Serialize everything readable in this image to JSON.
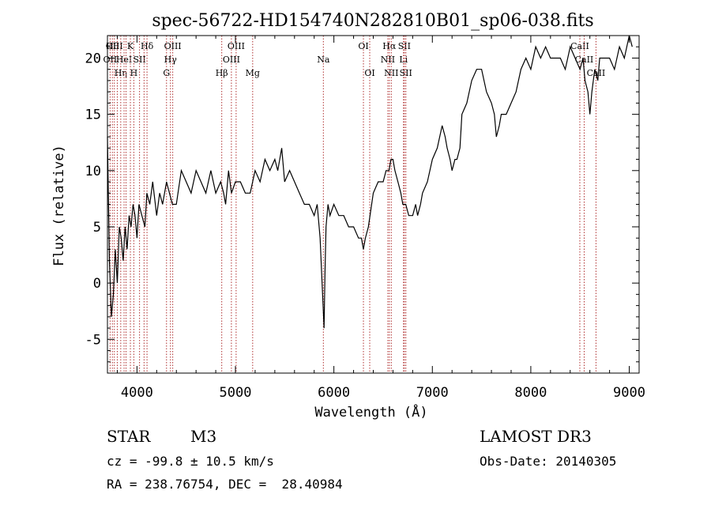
{
  "chart_data": {
    "type": "line",
    "title": "spec-56722-HD154740N282810B01_sp06-038.fits",
    "xlabel": "Wavelength (Å)",
    "ylabel": "Flux (relative)",
    "xlim": [
      3700,
      9100
    ],
    "ylim": [
      -8,
      22
    ],
    "xticks": [
      4000,
      5000,
      6000,
      7000,
      8000,
      9000
    ],
    "yticks": [
      -5,
      0,
      5,
      10,
      15,
      20
    ],
    "grid": false,
    "line_color": "#000000",
    "marker_color": "#b03030",
    "series": [
      {
        "values_x": [
          3700,
          3720,
          3740,
          3760,
          3780,
          3800,
          3820,
          3840,
          3860,
          3880,
          3900,
          3920,
          3940,
          3960,
          3980,
          4000,
          4020,
          4050,
          4080,
          4100,
          4130,
          4160,
          4200,
          4230,
          4260,
          4300,
          4330,
          4360,
          4400,
          4450,
          4500,
          4550,
          4600,
          4650,
          4700,
          4750,
          4800,
          4850,
          4880,
          4900,
          4930,
          4960,
          5000,
          5050,
          5100,
          5150,
          5200,
          5250,
          5300,
          5350,
          5400,
          5430,
          5450,
          5470,
          5500,
          5550,
          5600,
          5650,
          5700,
          5750,
          5800,
          5830,
          5860,
          5880,
          5900,
          5910,
          5920,
          5940,
          5960,
          6000,
          6050,
          6100,
          6150,
          6200,
          6250,
          6280,
          6300,
          6320,
          6350,
          6400,
          6450,
          6500,
          6530,
          6560,
          6580,
          6600,
          6620,
          6650,
          6680,
          6700,
          6730,
          6760,
          6800,
          6830,
          6850,
          6880,
          6900,
          6950,
          7000,
          7050,
          7100,
          7130,
          7150,
          7180,
          7200,
          7230,
          7250,
          7280,
          7300,
          7350,
          7400,
          7450,
          7500,
          7550,
          7600,
          7630,
          7650,
          7680,
          7700,
          7750,
          7800,
          7850,
          7900,
          7950,
          8000,
          8050,
          8100,
          8150,
          8200,
          8250,
          8300,
          8350,
          8400,
          8450,
          8500,
          8530,
          8550,
          8580,
          8600,
          8620,
          8650,
          8680,
          8700,
          8750,
          8800,
          8850,
          8900,
          8950,
          9000,
          9030
        ],
        "values_y": [
          13,
          2,
          -3,
          -1,
          3,
          0,
          5,
          4,
          2,
          5,
          3,
          6,
          5,
          7,
          6,
          4,
          7,
          6,
          5,
          8,
          7,
          9,
          6,
          8,
          7,
          9,
          8,
          7,
          7,
          10,
          9,
          8,
          10,
          9,
          8,
          10,
          8,
          9,
          8,
          7,
          10,
          8,
          9,
          9,
          8,
          8,
          10,
          9,
          11,
          10,
          11,
          10,
          11,
          12,
          9,
          10,
          9,
          8,
          7,
          7,
          6,
          7,
          4,
          0,
          -4,
          1,
          5,
          7,
          6,
          7,
          6,
          6,
          5,
          5,
          4,
          4,
          3,
          4,
          5,
          8,
          9,
          9,
          10,
          10,
          11,
          11,
          10,
          9,
          8,
          7,
          7,
          6,
          6,
          7,
          6,
          7,
          8,
          9,
          11,
          12,
          14,
          13,
          12,
          11,
          10,
          11,
          11,
          12,
          15,
          16,
          18,
          19,
          19,
          17,
          16,
          15,
          13,
          14,
          15,
          15,
          16,
          17,
          19,
          20,
          19,
          21,
          20,
          21,
          20,
          20,
          20,
          19,
          21,
          20,
          19,
          20,
          18,
          17,
          15,
          17,
          19,
          18,
          20,
          20,
          20,
          19,
          21,
          20,
          22,
          21
        ]
      }
    ],
    "lines": [
      {
        "x": 3727,
        "label": "OII",
        "row": 1
      },
      {
        "x": 3750,
        "label": "Hθ",
        "row": 0
      },
      {
        "x": 3770,
        "label": "OIII",
        "row": 0
      },
      {
        "x": 3800,
        "label": "",
        "row": 0
      },
      {
        "x": 3835,
        "label": "Hη",
        "row": 2
      },
      {
        "x": 3869,
        "label": "HeI",
        "row": 1
      },
      {
        "x": 3889,
        "label": "",
        "row": 0
      },
      {
        "x": 3933,
        "label": "K",
        "row": 0
      },
      {
        "x": 3968,
        "label": "H",
        "row": 2
      },
      {
        "x": 4026,
        "label": "SII",
        "row": 1
      },
      {
        "x": 4072,
        "label": "",
        "row": 0
      },
      {
        "x": 4102,
        "label": "Hδ",
        "row": 0
      },
      {
        "x": 4300,
        "label": "G",
        "row": 2
      },
      {
        "x": 4340,
        "label": "Hγ",
        "row": 1
      },
      {
        "x": 4363,
        "label": "OIII",
        "row": 0
      },
      {
        "x": 4861,
        "label": "Hβ",
        "row": 2
      },
      {
        "x": 4959,
        "label": "OIII",
        "row": 1
      },
      {
        "x": 5007,
        "label": "OIII",
        "row": 0
      },
      {
        "x": 5175,
        "label": "Mg",
        "row": 2
      },
      {
        "x": 5893,
        "label": "Na",
        "row": 1
      },
      {
        "x": 6300,
        "label": "OI",
        "row": 0
      },
      {
        "x": 6364,
        "label": "OI",
        "row": 2
      },
      {
        "x": 6548,
        "label": "NII",
        "row": 1
      },
      {
        "x": 6563,
        "label": "Hα",
        "row": 0
      },
      {
        "x": 6583,
        "label": "NII",
        "row": 2
      },
      {
        "x": 6707,
        "label": "Li",
        "row": 1
      },
      {
        "x": 6716,
        "label": "SII",
        "row": 0
      },
      {
        "x": 6731,
        "label": "SII",
        "row": 2
      },
      {
        "x": 8498,
        "label": "CaII",
        "row": 0
      },
      {
        "x": 8542,
        "label": "CaII",
        "row": 1
      },
      {
        "x": 8662,
        "label": "CaII",
        "row": 2
      }
    ]
  },
  "info": {
    "class_label": "STAR",
    "subclass": "M3",
    "survey": "LAMOST DR3",
    "cz": "cz = -99.8 ± 10.5 km/s",
    "obs_date": "Obs-Date: 20140305",
    "radec": "RA = 238.76754, DEC =  28.40984"
  }
}
